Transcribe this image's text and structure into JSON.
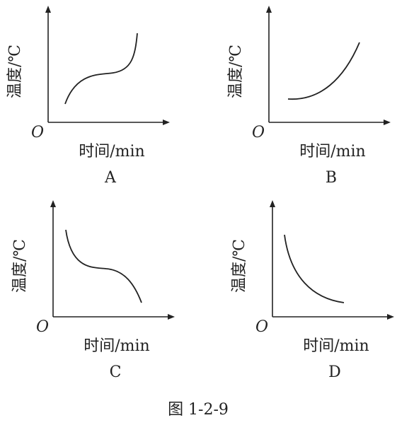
{
  "panels": [
    {
      "label": "A",
      "y_axis": "温度/℃",
      "x_axis": "时间/min",
      "origin": "O"
    },
    {
      "label": "B",
      "y_axis": "温度/℃",
      "x_axis": "时间/min",
      "origin": "O"
    },
    {
      "label": "C",
      "y_axis": "温度/℃",
      "x_axis": "时间/min",
      "origin": "O"
    },
    {
      "label": "D",
      "y_axis": "温度/℃",
      "x_axis": "时间/min",
      "origin": "O"
    }
  ],
  "caption": "图 1-2-9"
}
